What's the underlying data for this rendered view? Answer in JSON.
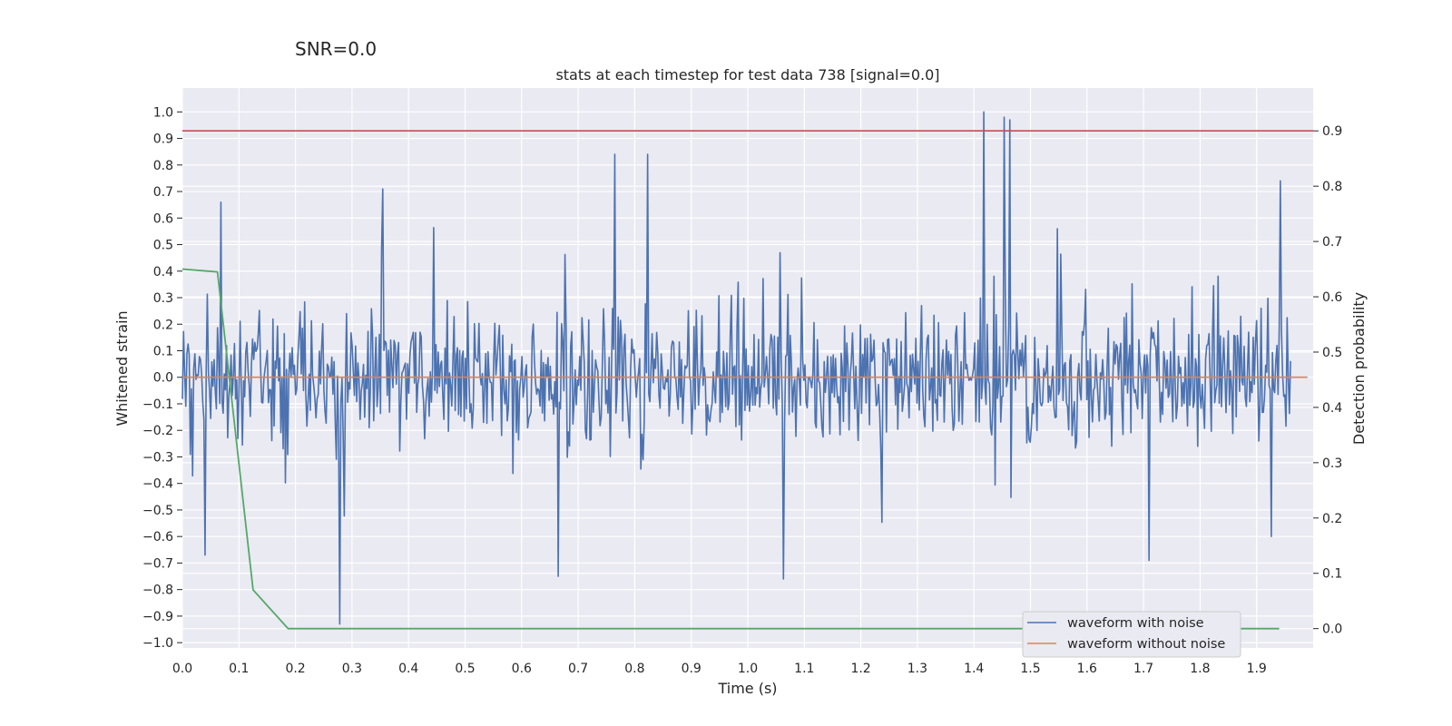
{
  "suptitle": "SNR=0.0",
  "chart_data": {
    "type": "line",
    "title": "stats at each timestep for test data 738 [signal=0.0]",
    "xlabel": "Time (s)",
    "ylabel": "Whitened strain",
    "y2label": "Detection probability",
    "xlim": [
      0.0,
      2.0
    ],
    "ylim": [
      -1.02,
      1.09
    ],
    "y2lim": [
      -0.035,
      0.9775
    ],
    "xticks": [
      "0.0",
      "0.1",
      "0.2",
      "0.3",
      "0.4",
      "0.5",
      "0.6",
      "0.7",
      "0.8",
      "0.9",
      "1.0",
      "1.1",
      "1.2",
      "1.3",
      "1.4",
      "1.5",
      "1.6",
      "1.7",
      "1.8",
      "1.9"
    ],
    "yticks": [
      "1.0",
      "0.9",
      "0.8",
      "0.7",
      "0.6",
      "0.5",
      "0.4",
      "0.3",
      "0.2",
      "0.1",
      "0.0",
      "−0.1",
      "−0.2",
      "−0.3",
      "−0.4",
      "−0.5",
      "−0.6",
      "−0.7",
      "−0.8",
      "−0.9",
      "−1.0"
    ],
    "y2ticks": [
      "0.9",
      "0.8",
      "0.7",
      "0.6",
      "0.5",
      "0.4",
      "0.3",
      "0.2",
      "0.1",
      "0.0"
    ],
    "grid": true,
    "legend_position": "lower-right",
    "series": [
      {
        "name": "waveform with noise",
        "axis": "left",
        "color": "#4c72b0",
        "style": "dense noise, samples spanning 0 to 1.96 s",
        "x_range": [
          0.0,
          1.96
        ],
        "peaks": [
          {
            "x": 0.068,
            "y": 0.66
          },
          {
            "x": 0.355,
            "y": 0.71
          },
          {
            "x": 0.764,
            "y": 0.84
          },
          {
            "x": 0.823,
            "y": 0.84
          },
          {
            "x": 1.418,
            "y": 1.0
          },
          {
            "x": 1.453,
            "y": 0.98
          },
          {
            "x": 1.464,
            "y": 0.97
          },
          {
            "x": 1.941,
            "y": 0.74
          }
        ],
        "troughs": [
          {
            "x": 0.04,
            "y": -0.67
          },
          {
            "x": 0.279,
            "y": -0.93
          },
          {
            "x": 0.665,
            "y": -0.75
          },
          {
            "x": 1.063,
            "y": -0.76
          },
          {
            "x": 1.709,
            "y": -0.69
          },
          {
            "x": 1.926,
            "y": -0.6
          }
        ]
      },
      {
        "name": "waveform without noise",
        "axis": "left",
        "color": "#dd8452",
        "x": [
          0.0,
          1.99
        ],
        "y": [
          0.0,
          0.0
        ]
      },
      {
        "axis": "right",
        "color": "#55a868",
        "x": [
          0.0,
          0.062,
          0.125,
          0.187,
          0.25,
          0.5,
          1.0,
          1.5,
          1.94
        ],
        "y": [
          0.65,
          0.645,
          0.07,
          0.0,
          0.0,
          0.0,
          0.0,
          0.0,
          0.0
        ]
      },
      {
        "axis": "right",
        "color": "#c44e52",
        "type": "threshold",
        "y": 0.9
      }
    ]
  }
}
